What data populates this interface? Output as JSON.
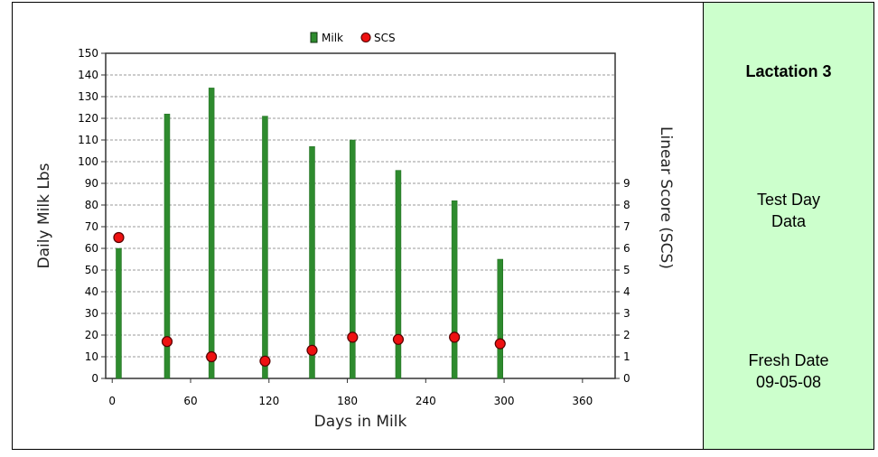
{
  "chart_data": {
    "type": "bar",
    "title": "",
    "legend": [
      {
        "name": "Milk",
        "marker": "square",
        "color": "#2e8b2e"
      },
      {
        "name": "SCS",
        "marker": "circle",
        "color": "#ee1111"
      }
    ],
    "legend_position": "top-center",
    "xlabel": "Days in Milk",
    "ylabel_left": "Daily Milk Lbs",
    "ylabel_right": "Linear Score (SCS)",
    "x_ticks": [
      0,
      60,
      120,
      180,
      240,
      300,
      360
    ],
    "xlim": [
      -5,
      385
    ],
    "y_left_ticks": [
      0,
      10,
      20,
      30,
      40,
      50,
      60,
      70,
      80,
      90,
      100,
      110,
      120,
      130,
      140,
      150
    ],
    "ylim_left": [
      0,
      150
    ],
    "y_right_ticks": [
      0,
      1,
      2,
      3,
      4,
      5,
      6,
      7,
      8,
      9
    ],
    "ylim_right": [
      0,
      15
    ],
    "grid": true,
    "series": [
      {
        "name": "Milk",
        "axis": "left",
        "type": "bar",
        "x": [
          5,
          42,
          76,
          117,
          153,
          184,
          219,
          262,
          297
        ],
        "values": [
          60,
          122,
          134,
          121,
          107,
          110,
          96,
          82,
          55
        ]
      },
      {
        "name": "SCS",
        "axis": "right",
        "type": "scatter",
        "x": [
          5,
          42,
          76,
          117,
          153,
          184,
          219,
          262,
          297
        ],
        "values": [
          6.5,
          1.7,
          1.0,
          0.8,
          1.3,
          1.9,
          1.8,
          1.9,
          1.6
        ]
      }
    ]
  },
  "side_panel": {
    "lactation": "Lactation 3",
    "test_day_line1": "Test Day",
    "test_day_line2": "Data",
    "fresh_date_line1": "Fresh Date",
    "fresh_date_line2": "09-05-08"
  }
}
